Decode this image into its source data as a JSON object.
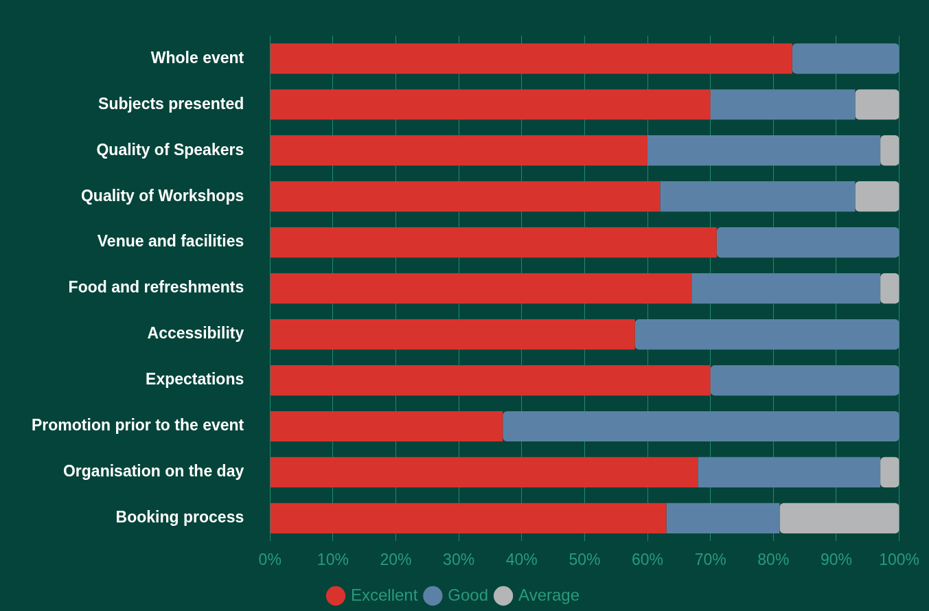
{
  "chart_data": {
    "type": "bar",
    "orientation": "horizontal",
    "stacked": true,
    "categories": [
      "Whole event",
      "Subjects presented",
      "Quality of Speakers",
      "Quality of Workshops",
      "Venue and facilities",
      "Food and refreshments",
      "Accessibility",
      "Expectations",
      "Promotion prior to the event",
      "Organisation on the day",
      "Booking process"
    ],
    "series": [
      {
        "name": "Excellent",
        "color": "#d9332e",
        "values": [
          83,
          70,
          60,
          62,
          71,
          67,
          58,
          70,
          37,
          68,
          63
        ]
      },
      {
        "name": "Good",
        "color": "#5b82a6",
        "values": [
          17,
          23,
          37,
          31,
          29,
          30,
          42,
          30,
          63,
          29,
          18
        ]
      },
      {
        "name": "Average",
        "color": "#b3b5b6",
        "values": [
          0,
          7,
          3,
          7,
          0,
          3,
          0,
          0,
          0,
          3,
          19
        ]
      }
    ],
    "xlim": [
      0,
      100
    ],
    "xticks": [
      {
        "value": 0,
        "label": "0%"
      },
      {
        "value": 10,
        "label": "10%"
      },
      {
        "value": 20,
        "label": "20%"
      },
      {
        "value": 30,
        "label": "30%"
      },
      {
        "value": 40,
        "label": "40%"
      },
      {
        "value": 50,
        "label": "50%"
      },
      {
        "value": 60,
        "label": "60%"
      },
      {
        "value": 70,
        "label": "70%"
      },
      {
        "value": 80,
        "label": "80%"
      },
      {
        "value": 90,
        "label": "90%"
      },
      {
        "value": 100,
        "label": "100%"
      }
    ],
    "grid": "x",
    "legend": "bottom",
    "marker": "circle"
  }
}
